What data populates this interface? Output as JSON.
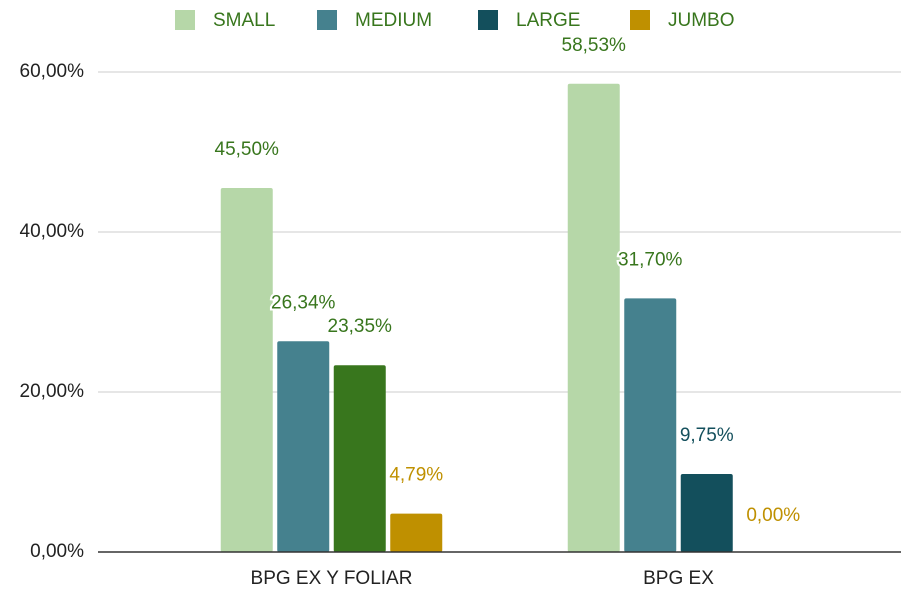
{
  "chart_data": {
    "type": "bar",
    "categories": [
      "BPG EX Y FOLIAR",
      "BPG EX"
    ],
    "series": [
      {
        "name": "SMALL",
        "color": "#b6d7a8",
        "values": [
          45.5,
          58.53
        ],
        "value_labels": [
          "45,50%",
          "58,53%"
        ],
        "label_colors": [
          "#38761d",
          "#38761d"
        ]
      },
      {
        "name": "MEDIUM",
        "color": "#45818e",
        "values": [
          26.34,
          31.7
        ],
        "value_labels": [
          "26,34%",
          "31,70%"
        ],
        "label_colors": [
          "#38761d",
          "#38761d"
        ]
      },
      {
        "name": "LARGE",
        "color": "#134f5c",
        "point_colors": [
          "#38761d",
          "#134f5c"
        ],
        "values": [
          23.35,
          9.75
        ],
        "value_labels": [
          "23,35%",
          "9,75%"
        ],
        "label_colors": [
          "#38761d",
          "#134f5c"
        ]
      },
      {
        "name": "JUMBO",
        "color": "#bf9000",
        "values": [
          4.79,
          0
        ],
        "value_labels": [
          "4,79%",
          "0,00%"
        ],
        "label_colors": [
          "#bf9000",
          "#bf9000"
        ]
      }
    ],
    "ylim": [
      0,
      60
    ],
    "yticks": [
      {
        "value": 0,
        "label": "0,00%"
      },
      {
        "value": 20,
        "label": "20,00%"
      },
      {
        "value": 40,
        "label": "40,00%"
      },
      {
        "value": 60,
        "label": "60,00%"
      }
    ],
    "grid": true,
    "legend": "top"
  }
}
